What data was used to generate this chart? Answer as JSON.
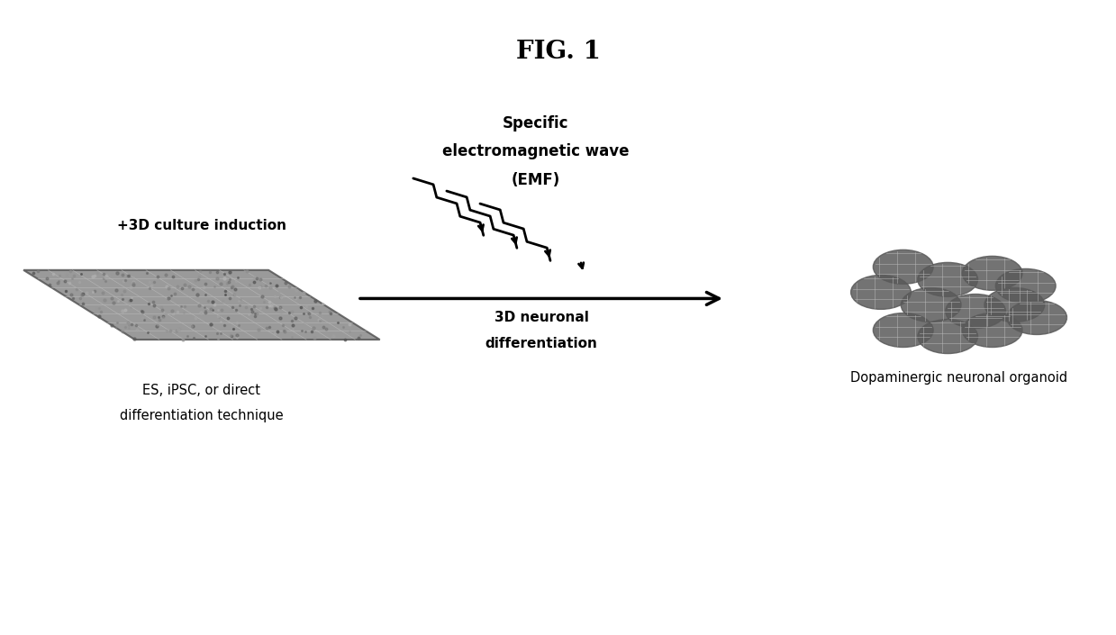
{
  "title": "FIG. 1",
  "title_fontsize": 20,
  "title_fontweight": "bold",
  "background_color": "#ffffff",
  "text_color": "#000000",
  "label_left_line1": "ES, iPSC, or direct",
  "label_left_line2": "differentiation technique",
  "label_left_top": "+3D culture induction",
  "label_center_line1": "Specific",
  "label_center_line2": "electromagnetic wave",
  "label_center_line3": "(EMF)",
  "label_center_bottom_line1": "3D neuronal",
  "label_center_bottom_line2": "differentiation",
  "label_right_line1": "Dopaminergic neuronal organoid",
  "organoid_color": "#555555",
  "plate_color_dark": "#888888",
  "plate_color_light": "#aaaaaa",
  "arrow_color": "#000000"
}
